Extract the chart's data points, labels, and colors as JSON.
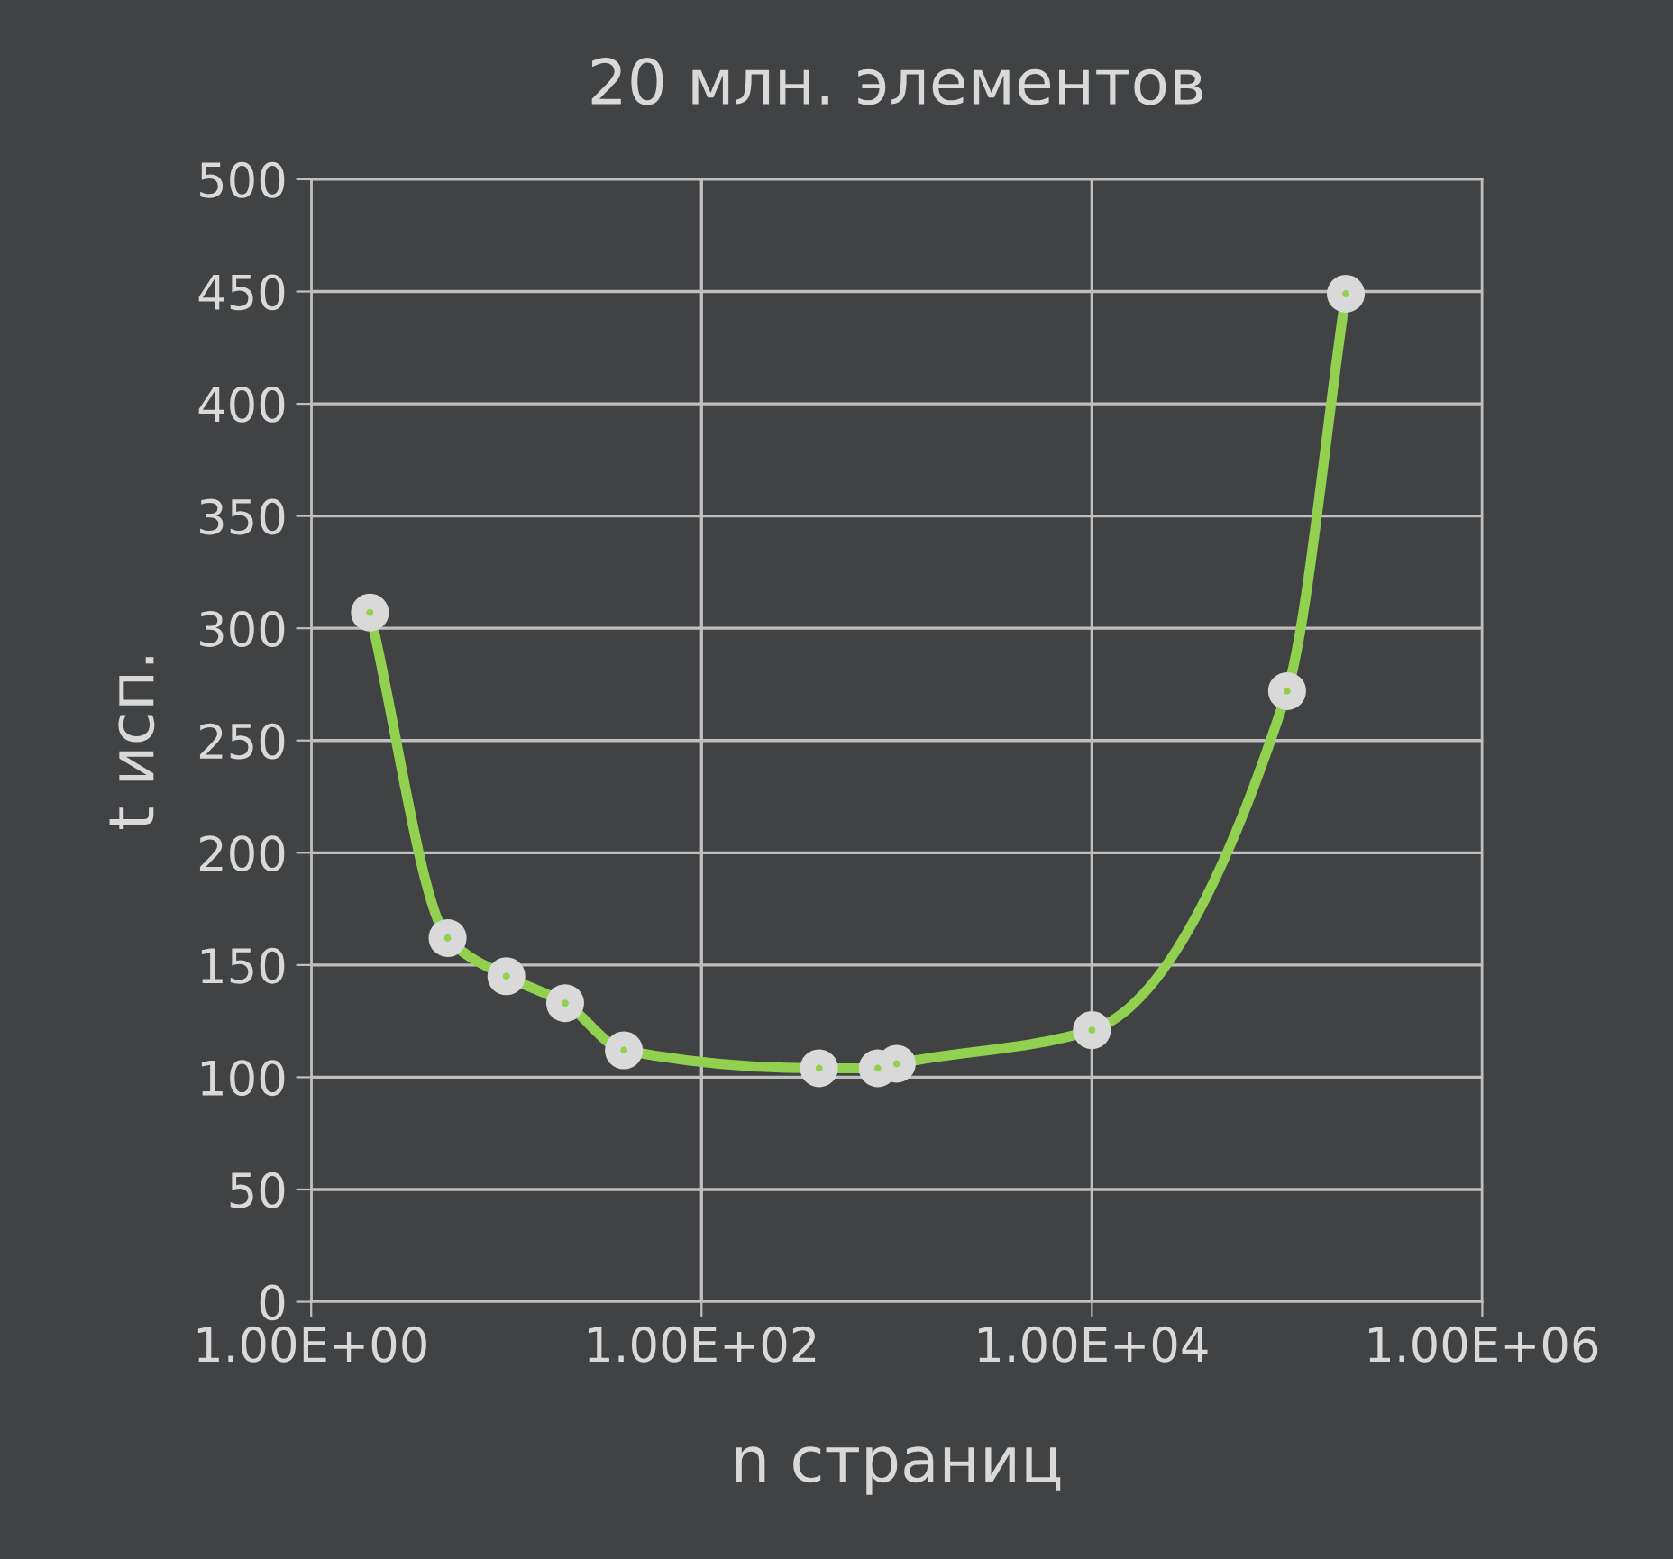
{
  "chart_data": {
    "type": "line",
    "title": "20 млн. элементов",
    "xlabel": "n страниц",
    "ylabel": "t исп.",
    "log": "x",
    "xlim": [
      1,
      1000000
    ],
    "ylim": [
      0,
      500
    ],
    "xticks": [
      {
        "value": 1,
        "label": "1.00E+00"
      },
      {
        "value": 100,
        "label": "1.00E+02"
      },
      {
        "value": 10000,
        "label": "1.00E+04"
      },
      {
        "value": 1000000,
        "label": "1.00E+06"
      }
    ],
    "yticks": [
      0,
      50,
      100,
      150,
      200,
      250,
      300,
      350,
      400,
      450,
      500
    ],
    "grid": true,
    "marker": "circle",
    "line_style": "solid",
    "series": [
      {
        "color": "#92d050",
        "x": [
          2,
          5,
          10,
          20,
          40,
          400,
          800,
          1000,
          10000,
          100000,
          200000
        ],
        "values": [
          307,
          162,
          145,
          133,
          112,
          104,
          104,
          106,
          121,
          272,
          449
        ]
      }
    ]
  }
}
